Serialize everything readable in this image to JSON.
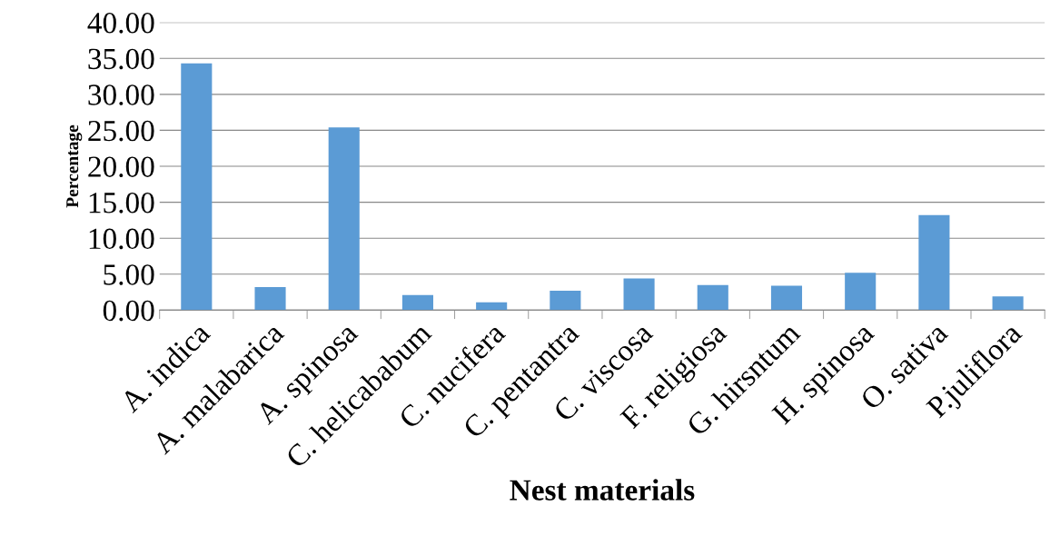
{
  "chart_data": {
    "type": "bar",
    "xlabel": "Nest materials",
    "ylabel": "Percentage",
    "categories": [
      "A. indica",
      "A. malabarica",
      "A. spinosa",
      "C. helicababum",
      "C. nucifera",
      "C. pentantra",
      "C. viscosa",
      "F. religiosa",
      "G. hirsntum",
      "H. spinosa",
      "O. sativa",
      "P.juliflora"
    ],
    "values": [
      34.3,
      3.2,
      25.4,
      2.1,
      1.1,
      2.7,
      4.4,
      3.5,
      3.4,
      5.2,
      13.2,
      1.9
    ],
    "color": "#5b9bd5",
    "ylim": [
      0,
      40
    ],
    "yticks": [
      {
        "value": 0,
        "label": "0.00"
      },
      {
        "value": 5,
        "label": "5.00"
      },
      {
        "value": 10,
        "label": "10.00"
      },
      {
        "value": 15,
        "label": "15.00"
      },
      {
        "value": 20,
        "label": "20.00"
      },
      {
        "value": 25,
        "label": "25.00"
      },
      {
        "value": 30,
        "label": "30.00"
      },
      {
        "value": 35,
        "label": "35.00"
      },
      {
        "value": 40,
        "label": "40.00"
      }
    ],
    "grid": "y"
  }
}
